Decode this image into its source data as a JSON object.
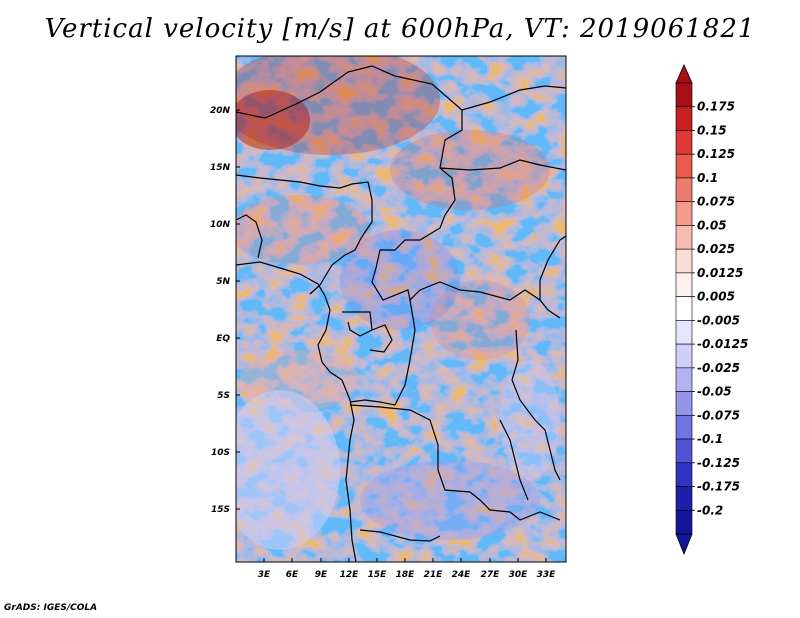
{
  "title": "Vertical velocity [m/s] at 600hPa, VT: 2019061821",
  "footer": "GrADS: IGES/COLA",
  "map": {
    "lat_labels": [
      "20N",
      "15N",
      "10N",
      "5N",
      "EQ",
      "5S",
      "10S",
      "15S"
    ],
    "lon_labels": [
      "3E",
      "6E",
      "9E",
      "12E",
      "15E",
      "18E",
      "21E",
      "24E",
      "27E",
      "30E",
      "33E"
    ]
  },
  "colorbar": {
    "levels": [
      "0.175",
      "0.15",
      "0.125",
      "0.1",
      "0.075",
      "0.05",
      "0.025",
      "0.0125",
      "0.005",
      "-0.005",
      "-0.0125",
      "-0.025",
      "-0.05",
      "-0.075",
      "-0.1",
      "-0.125",
      "-0.175",
      "-0.2"
    ],
    "colors": [
      "#a50f15",
      "#c8201f",
      "#dc3a33",
      "#e85a4e",
      "#ef7b6d",
      "#f39a8c",
      "#f8bcb1",
      "#fbdcd6",
      "#fdf0ee",
      "#ffffff",
      "#e6e6fb",
      "#cfcff7",
      "#b3b3f1",
      "#9494ea",
      "#7373e1",
      "#5252d6",
      "#3232c4",
      "#1e1eaa",
      "#15159a"
    ]
  }
}
